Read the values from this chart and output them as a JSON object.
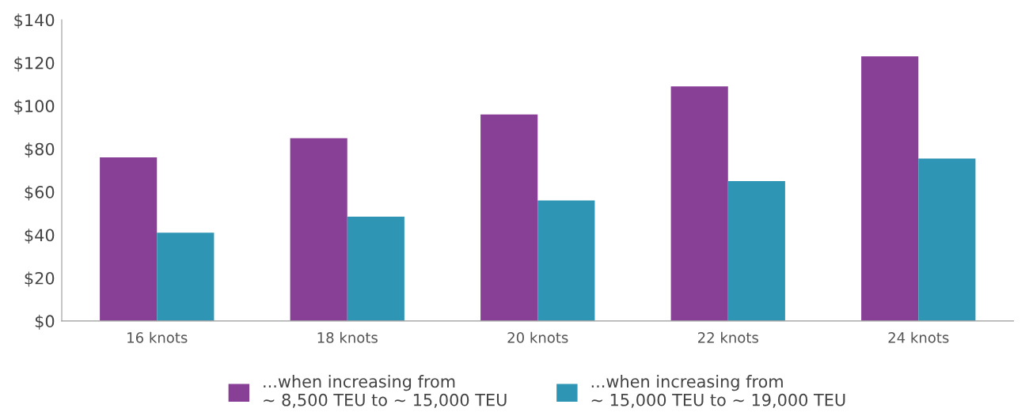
{
  "chart_data": {
    "type": "bar",
    "categories": [
      "16 knots",
      "18 knots",
      "20 knots",
      "22 knots",
      "24 knots"
    ],
    "series": [
      {
        "name": "...when increasing from\n~ 8,500 TEU to ~ 15,000 TEU",
        "color": "#883f96",
        "values": [
          76,
          85,
          96,
          109,
          123
        ]
      },
      {
        "name": "...when increasing from\n~ 15,000 TEU to ~ 19,000 TEU",
        "color": "#2e95b4",
        "values": [
          41,
          48.5,
          56,
          65,
          75.5
        ]
      }
    ],
    "ylim": [
      0,
      140
    ],
    "yticks": [
      {
        "value": 0,
        "label": "$0"
      },
      {
        "value": 20,
        "label": "$20"
      },
      {
        "value": 40,
        "label": "$40"
      },
      {
        "value": 60,
        "label": "$60"
      },
      {
        "value": 80,
        "label": "$80"
      },
      {
        "value": 100,
        "label": "$100"
      },
      {
        "value": 120,
        "label": "$120"
      },
      {
        "value": 140,
        "label": "$140"
      }
    ],
    "grid": false,
    "legend": "bottom"
  }
}
